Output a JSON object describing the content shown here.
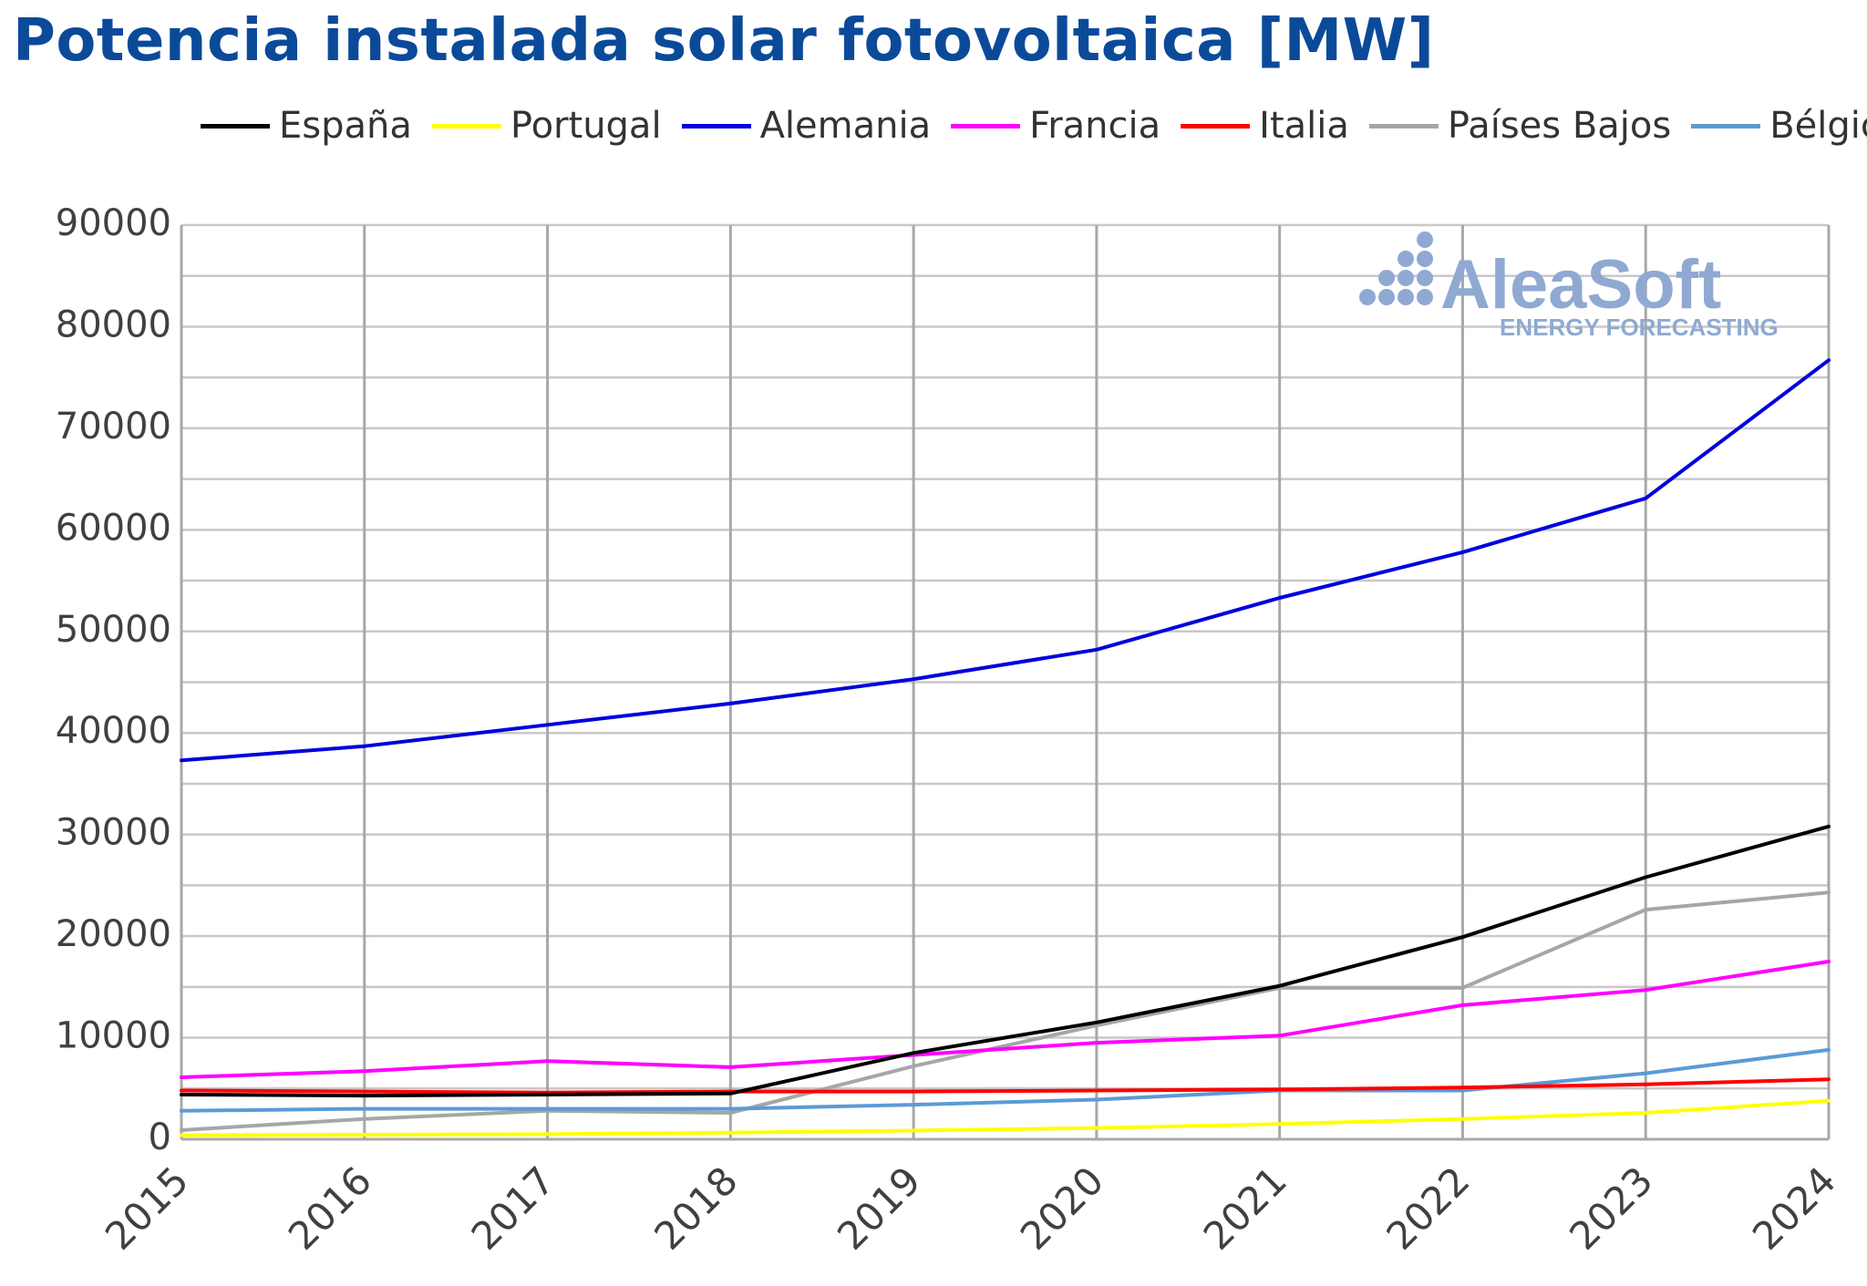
{
  "title": "Potencia instalada solar fotovoltaica [MW]",
  "watermark": {
    "brand": "AleaSoft",
    "tagline": "ENERGY FORECASTING"
  },
  "chart_data": {
    "type": "line",
    "title": "Potencia instalada solar fotovoltaica [MW]",
    "xlabel": "",
    "ylabel": "",
    "x": [
      "2015",
      "2016",
      "2017",
      "2018",
      "2019",
      "2020",
      "2021",
      "2022",
      "2023",
      "2024"
    ],
    "ylim": [
      0,
      90000
    ],
    "yticks": [
      "0",
      "10000",
      "20000",
      "30000",
      "40000",
      "50000",
      "60000",
      "70000",
      "80000",
      "90000"
    ],
    "grid": true,
    "legend_position": "top",
    "series": [
      {
        "name": "España",
        "color": "#000000",
        "values": [
          4400,
          4300,
          4400,
          4500,
          8500,
          11500,
          15100,
          19900,
          25800,
          30800
        ]
      },
      {
        "name": "Portugal",
        "color": "#ffff00",
        "values": [
          400,
          450,
          500,
          650,
          850,
          1100,
          1500,
          2000,
          2600,
          3800
        ]
      },
      {
        "name": "Alemania",
        "color": "#0000dd",
        "values": [
          37300,
          38700,
          40800,
          42900,
          45300,
          48200,
          53300,
          57800,
          63100,
          76700
        ]
      },
      {
        "name": "Francia",
        "color": "#ff00ff",
        "values": [
          6100,
          6700,
          7700,
          7100,
          8300,
          9500,
          10200,
          13200,
          14700,
          17500
        ]
      },
      {
        "name": "Italia",
        "color": "#ff0000",
        "values": [
          4800,
          4700,
          4600,
          4700,
          4700,
          4800,
          4900,
          5100,
          5400,
          5900
        ]
      },
      {
        "name": "Países Bajos",
        "color": "#a6a6a6",
        "values": [
          900,
          2000,
          2800,
          2600,
          7200,
          11200,
          14900,
          14900,
          22600,
          24300
        ]
      },
      {
        "name": "Bélgica",
        "color": "#5b9bd5",
        "values": [
          2800,
          3000,
          3000,
          3000,
          3400,
          3900,
          4800,
          4800,
          6500,
          8800
        ]
      }
    ]
  }
}
